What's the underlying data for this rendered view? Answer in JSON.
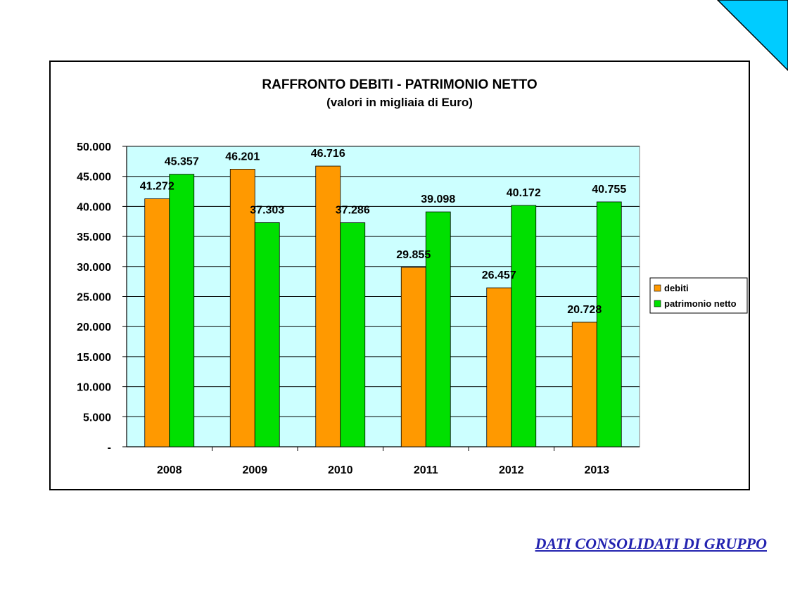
{
  "colors": {
    "debiti": "#ff9900",
    "patrimonio": "#00e000",
    "plot_bg": "#ccffff",
    "corner": "#00ccff",
    "link": "#2323b0"
  },
  "footer": {
    "link_text": "DATI CONSOLIDATI DI GRUPPO"
  },
  "chart_data": {
    "type": "bar",
    "title": "RAFFRONTO DEBITI - PATRIMONIO NETTO",
    "subtitle": "(valori in migliaia di Euro)",
    "categories": [
      "2008",
      "2009",
      "2010",
      "2011",
      "2012",
      "2013"
    ],
    "series": [
      {
        "name": "debiti",
        "values": [
          41272,
          46201,
          46716,
          29855,
          26457,
          20728
        ],
        "labels": [
          "41.272",
          "46.201",
          "46.716",
          "29.855",
          "26.457",
          "20.728"
        ]
      },
      {
        "name": "patrimonio netto",
        "values": [
          45357,
          37303,
          37286,
          39098,
          40172,
          40755
        ],
        "labels": [
          "45.357",
          "37.303",
          "37.286",
          "39.098",
          "40.172",
          "40.755"
        ]
      }
    ],
    "ylim": [
      0,
      50000
    ],
    "yticks": [
      0,
      5000,
      10000,
      15000,
      20000,
      25000,
      30000,
      35000,
      40000,
      45000,
      50000
    ],
    "ytick_labels": [
      "-",
      "5.000",
      "10.000",
      "15.000",
      "20.000",
      "25.000",
      "30.000",
      "35.000",
      "40.000",
      "45.000",
      "50.000"
    ],
    "grid": true,
    "legend_position": "right"
  }
}
